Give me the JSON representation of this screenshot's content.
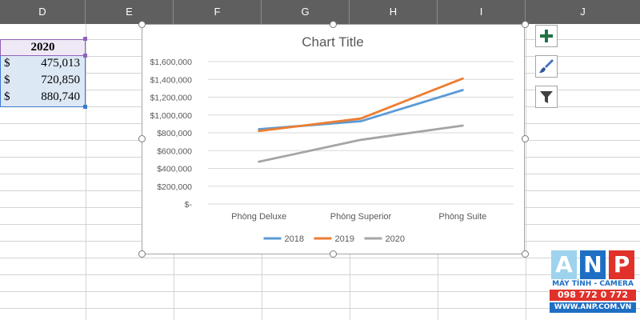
{
  "columns": [
    "D",
    "E",
    "F",
    "G",
    "H",
    "I",
    "J"
  ],
  "table": {
    "header": "2020",
    "rows": [
      {
        "currency": "$",
        "amount": "475,013"
      },
      {
        "currency": "$",
        "amount": "720,850"
      },
      {
        "currency": "$",
        "amount": "880,740"
      }
    ]
  },
  "chart_data": {
    "type": "line",
    "title": "Chart Title",
    "categories": [
      "Phòng Deluxe",
      "Phòng Superior",
      "Phòng Suite"
    ],
    "y_ticks": [
      "$-",
      "$200,000",
      "$400,000",
      "$600,000",
      "$800,000",
      "$1,000,000",
      "$1,200,000",
      "$1,400,000",
      "$1,600,000"
    ],
    "ylim": [
      0,
      1600000
    ],
    "grid": true,
    "legend_position": "bottom",
    "series": [
      {
        "name": "2018",
        "color": "#5b9bd5",
        "values": [
          840000,
          930000,
          1280000
        ]
      },
      {
        "name": "2019",
        "color": "#ed7d31",
        "values": [
          820000,
          960000,
          1410000
        ]
      },
      {
        "name": "2020",
        "color": "#a5a5a5",
        "values": [
          475013,
          720850,
          880740
        ]
      }
    ]
  },
  "chart_buttons": [
    {
      "name": "chart-elements-button",
      "icon": "plus-icon"
    },
    {
      "name": "chart-styles-button",
      "icon": "paintbrush-icon"
    },
    {
      "name": "chart-filters-button",
      "icon": "filter-icon"
    }
  ],
  "watermark": {
    "letters": [
      "A",
      "N",
      "P"
    ],
    "line1": "MÁY TÍNH - CAMERA",
    "line2": "098 772 0 772",
    "line3": "WWW.ANP.COM.VN"
  }
}
